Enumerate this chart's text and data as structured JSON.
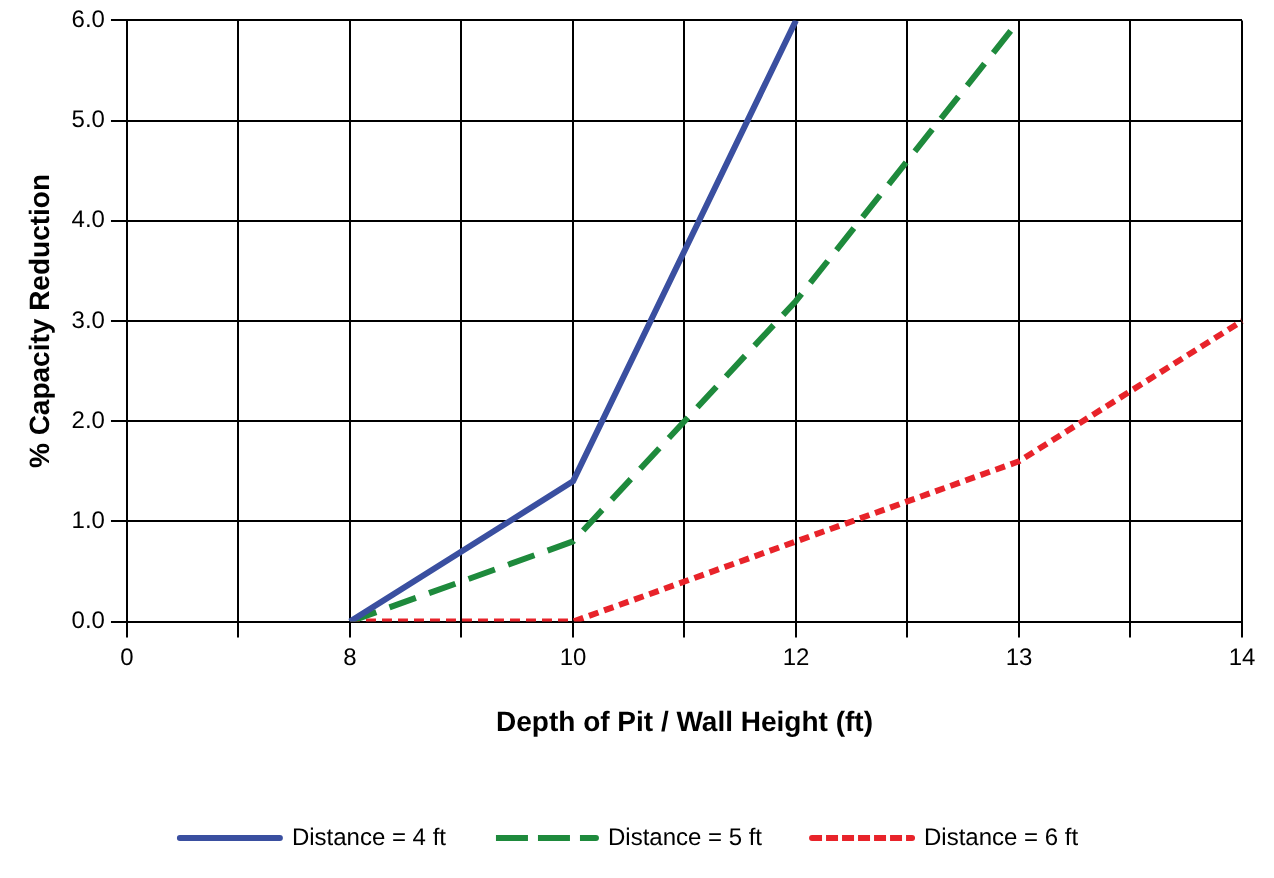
{
  "chart_data": {
    "type": "line",
    "xlabel": "Depth of Pit / Wall Height (ft)",
    "ylabel": "% Capacity Reduction",
    "categories": [
      "0",
      null,
      "8",
      null,
      "10",
      null,
      "12",
      null,
      "13",
      null,
      "14"
    ],
    "series": [
      {
        "name": "Distance = 4 ft",
        "color": "#3a4fa0",
        "line_style": "solid",
        "values": [
          null,
          null,
          0,
          null,
          1.4,
          null,
          6.0,
          null,
          null,
          null,
          null
        ]
      },
      {
        "name": "Distance = 5 ft",
        "color": "#1e8a3c",
        "line_style": "dashed",
        "values": [
          null,
          null,
          0,
          null,
          0.8,
          null,
          3.2,
          null,
          6.0,
          null,
          null
        ]
      },
      {
        "name": "Distance = 6 ft",
        "color": "#e8232a",
        "line_style": "dotted",
        "values": [
          null,
          null,
          0,
          null,
          0,
          null,
          0.8,
          null,
          1.6,
          null,
          3.0
        ]
      }
    ],
    "ylim": [
      0,
      6
    ],
    "yticks": [
      {
        "value": 0,
        "label": "0.0"
      },
      {
        "value": 1,
        "label": "1.0"
      },
      {
        "value": 2,
        "label": "2.0"
      },
      {
        "value": 3,
        "label": "3.0"
      },
      {
        "value": 4,
        "label": "4.0"
      },
      {
        "value": 5,
        "label": "5.0"
      },
      {
        "value": 6,
        "label": "6.0"
      }
    ],
    "grid": true,
    "legend": "bottom",
    "marker": "none"
  }
}
